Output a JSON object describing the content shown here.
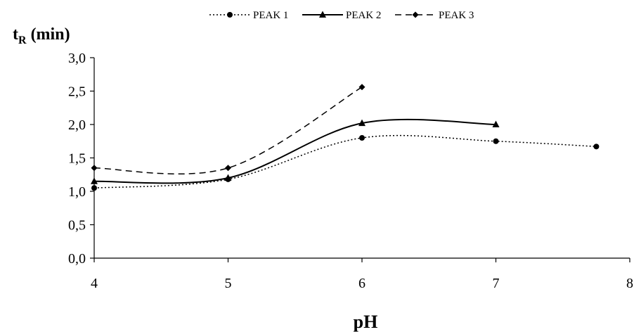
{
  "chart_data": {
    "type": "line",
    "xlabel": "pH",
    "ylabel_main": "t",
    "ylabel_sub": "R",
    "ylabel_unit": "(min)",
    "xlim": [
      4,
      8
    ],
    "ylim": [
      0,
      3
    ],
    "x_ticks": [
      "4",
      "5",
      "6",
      "7",
      "8"
    ],
    "y_ticks": [
      "0,0",
      "0,5",
      "1,0",
      "1,5",
      "2,0",
      "2,5",
      "3,0"
    ],
    "grid": false,
    "legend_position": "top",
    "series": [
      {
        "name": "PEAK 1",
        "style": "dotted",
        "marker": "circle",
        "color": "#000000",
        "x": [
          4,
          5,
          6,
          7,
          7.75
        ],
        "y": [
          1.05,
          1.18,
          1.8,
          1.75,
          1.67
        ]
      },
      {
        "name": "PEAK 2",
        "style": "solid",
        "marker": "triangle",
        "color": "#000000",
        "x": [
          4,
          5,
          6,
          7
        ],
        "y": [
          1.15,
          1.2,
          2.02,
          2.0
        ]
      },
      {
        "name": "PEAK 3",
        "style": "dashed",
        "marker": "diamond",
        "color": "#000000",
        "x": [
          4,
          5,
          6
        ],
        "y": [
          1.35,
          1.35,
          2.56
        ]
      }
    ]
  }
}
